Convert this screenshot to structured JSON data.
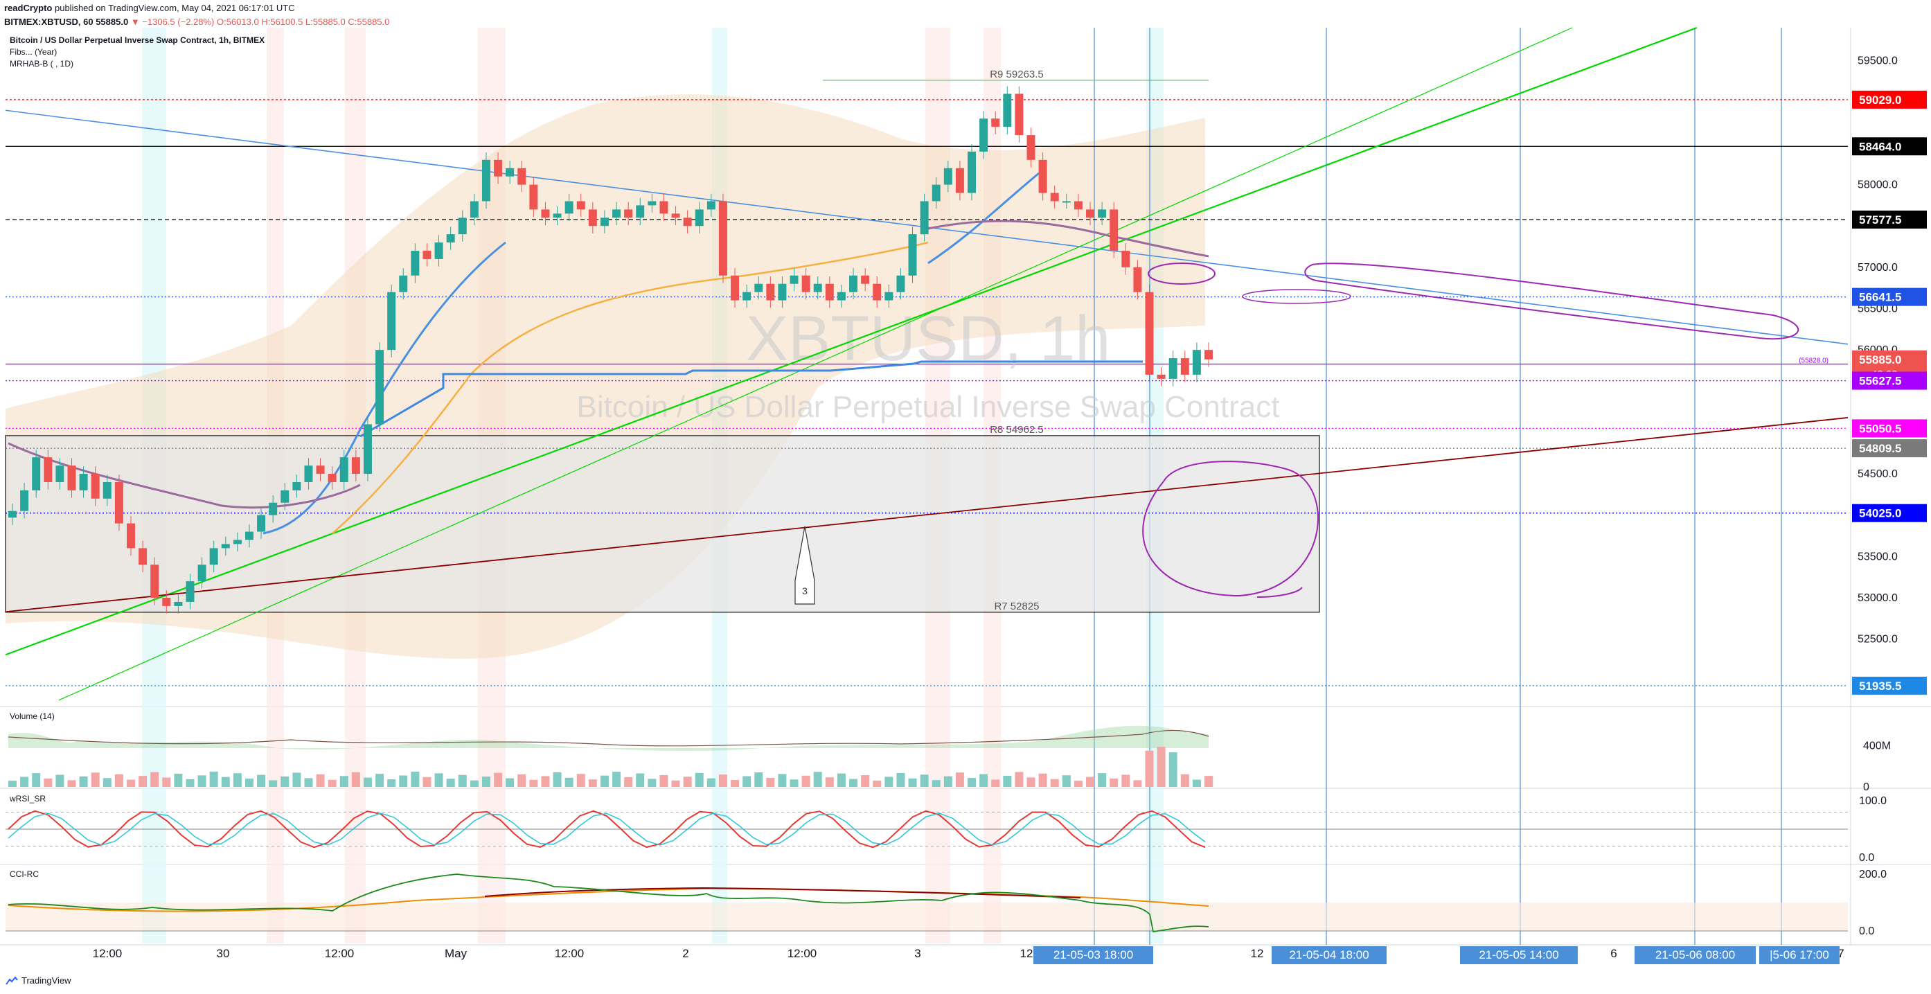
{
  "header": {
    "publisher": "readCrypto",
    "published_text": "published on TradingView.com, May 04, 2021 06:17:01 UTC",
    "symbol_line": "BITMEX:XBTUSD, 60",
    "last": "55885.0",
    "change": "▼ −1306.5 (−2.28%)",
    "ohlc": "O:56013.0 H:56100.5 L:55885.0 C:55885.0"
  },
  "legend": {
    "title": "Bitcoin / US Dollar Perpetual Inverse Swap Contract, 1h, BITMEX",
    "fibs": "Fibs... (Year)",
    "mrhab": "MRHAB-B ( , 1D)"
  },
  "watermark": {
    "symbol": "XBTUSD, 1h",
    "name": "Bitcoin / US Dollar Perpetual Inverse Swap Contract"
  },
  "panes": {
    "volume": "Volume (14)",
    "wrsi": "wRSI_SR",
    "cci": "CCI-RC"
  },
  "footer": {
    "brand": "TradingView"
  },
  "colors": {
    "up": "#26a69a",
    "down": "#ef5350",
    "axis_text": "#131722",
    "grid": "#f0f3fa",
    "box_fill": "#e6e6e6",
    "green_line": "#00d800",
    "blue_line": "#4a90e2",
    "darkred_line": "#8b0000",
    "purple": "#9c27b0",
    "vline": "#4a8fd8"
  },
  "chart_data": [
    {
      "type": "candlestick",
      "symbol": "BITMEX:XBTUSD",
      "interval": "1h",
      "ylim": [
        51700,
        59900
      ],
      "y_ticks": [
        {
          "label": "59500.0",
          "value": 59500
        },
        {
          "label": "58000.0",
          "value": 58000
        },
        {
          "label": "57000.0",
          "value": 57000
        },
        {
          "label": "56500.0",
          "value": 56500
        },
        {
          "label": "56000.0",
          "value": 56000
        },
        {
          "label": "54500.0",
          "value": 54500
        },
        {
          "label": "53500.0",
          "value": 53500
        },
        {
          "label": "53000.0",
          "value": 53000
        },
        {
          "label": "52500.0",
          "value": 52500
        }
      ],
      "x_ticks": [
        "12:00",
        "30",
        "12:00",
        "May",
        "12:00",
        "2",
        "12:00",
        "3",
        "12",
        "12",
        "6",
        "7"
      ],
      "x_time_labels": [
        "21-05-03   18:00",
        "21-05-04   18:00",
        "21-05-05   14:00",
        "21-05-06   08:00",
        "|5-06   17:00"
      ],
      "price_labels": [
        {
          "label": "59029.0",
          "value": 59029,
          "color": "#ff0000"
        },
        {
          "label": "58464.0",
          "value": 58464,
          "color": "#000000"
        },
        {
          "label": "57577.5",
          "value": 57577.5,
          "color": "#000000"
        },
        {
          "label": "56641.5",
          "value": 56641.5,
          "color": "#1e53e5"
        },
        {
          "label": "55885.0",
          "value": 55885,
          "color": "#ef5350",
          "sub": "43:02"
        },
        {
          "label": "55627.5",
          "value": 55627.5,
          "color": "#aa00ff"
        },
        {
          "label": "55050.5",
          "value": 55050.5,
          "color": "#ff00ff"
        },
        {
          "label": "54809.5",
          "value": 54809.5,
          "color": "#7a7a7a"
        },
        {
          "label": "54025.0",
          "value": 54025,
          "color": "#0000ff"
        },
        {
          "label": "51935.5",
          "value": 51935.5,
          "color": "#1e88e5"
        }
      ],
      "fib_levels": [
        {
          "label": "R9 59263.5",
          "value": 59263.5
        },
        {
          "label": "R8 54962.5",
          "value": 54962.5
        },
        {
          "label": "R7 52825",
          "value": 52825
        }
      ],
      "small_label": "(55828.0)",
      "annotation": "3",
      "close_series": [
        54050,
        54300,
        54700,
        54400,
        54600,
        54300,
        54500,
        54200,
        54400,
        53900,
        53600,
        53400,
        53000,
        52900,
        52950,
        53200,
        53400,
        53600,
        53650,
        53700,
        53800,
        54000,
        54150,
        54300,
        54400,
        54600,
        54500,
        54400,
        54700,
        54500,
        55100,
        56000,
        56700,
        56900,
        57200,
        57100,
        57300,
        57400,
        57600,
        57800,
        58300,
        58100,
        58200,
        58000,
        57700,
        57600,
        57650,
        57800,
        57700,
        57500,
        57600,
        57700,
        57600,
        57750,
        57800,
        57650,
        57600,
        57500,
        57700,
        57800,
        56900,
        56600,
        56700,
        56800,
        56600,
        56800,
        56900,
        56700,
        56800,
        56600,
        56700,
        56900,
        56800,
        56600,
        56700,
        56900,
        57400,
        57800,
        58000,
        58200,
        57900,
        58400,
        58800,
        58700,
        59100,
        58600,
        58300,
        57900,
        57800,
        57800,
        57700,
        57600,
        57700,
        57200,
        57000,
        56700,
        55700,
        55650,
        55900,
        55700,
        56000,
        55885
      ],
      "volume_ylim": [
        0,
        700
      ],
      "volume_ticks": [
        {
          "label": "400M",
          "value": 400
        },
        {
          "label": "0",
          "value": 0
        }
      ],
      "wrsi_ticks": [
        {
          "label": "100.0",
          "value": 100
        },
        {
          "label": "0.0",
          "value": 0
        }
      ],
      "cci_ticks": [
        {
          "label": "200.0",
          "value": 200
        },
        {
          "label": "0.0",
          "value": 0
        }
      ]
    }
  ]
}
